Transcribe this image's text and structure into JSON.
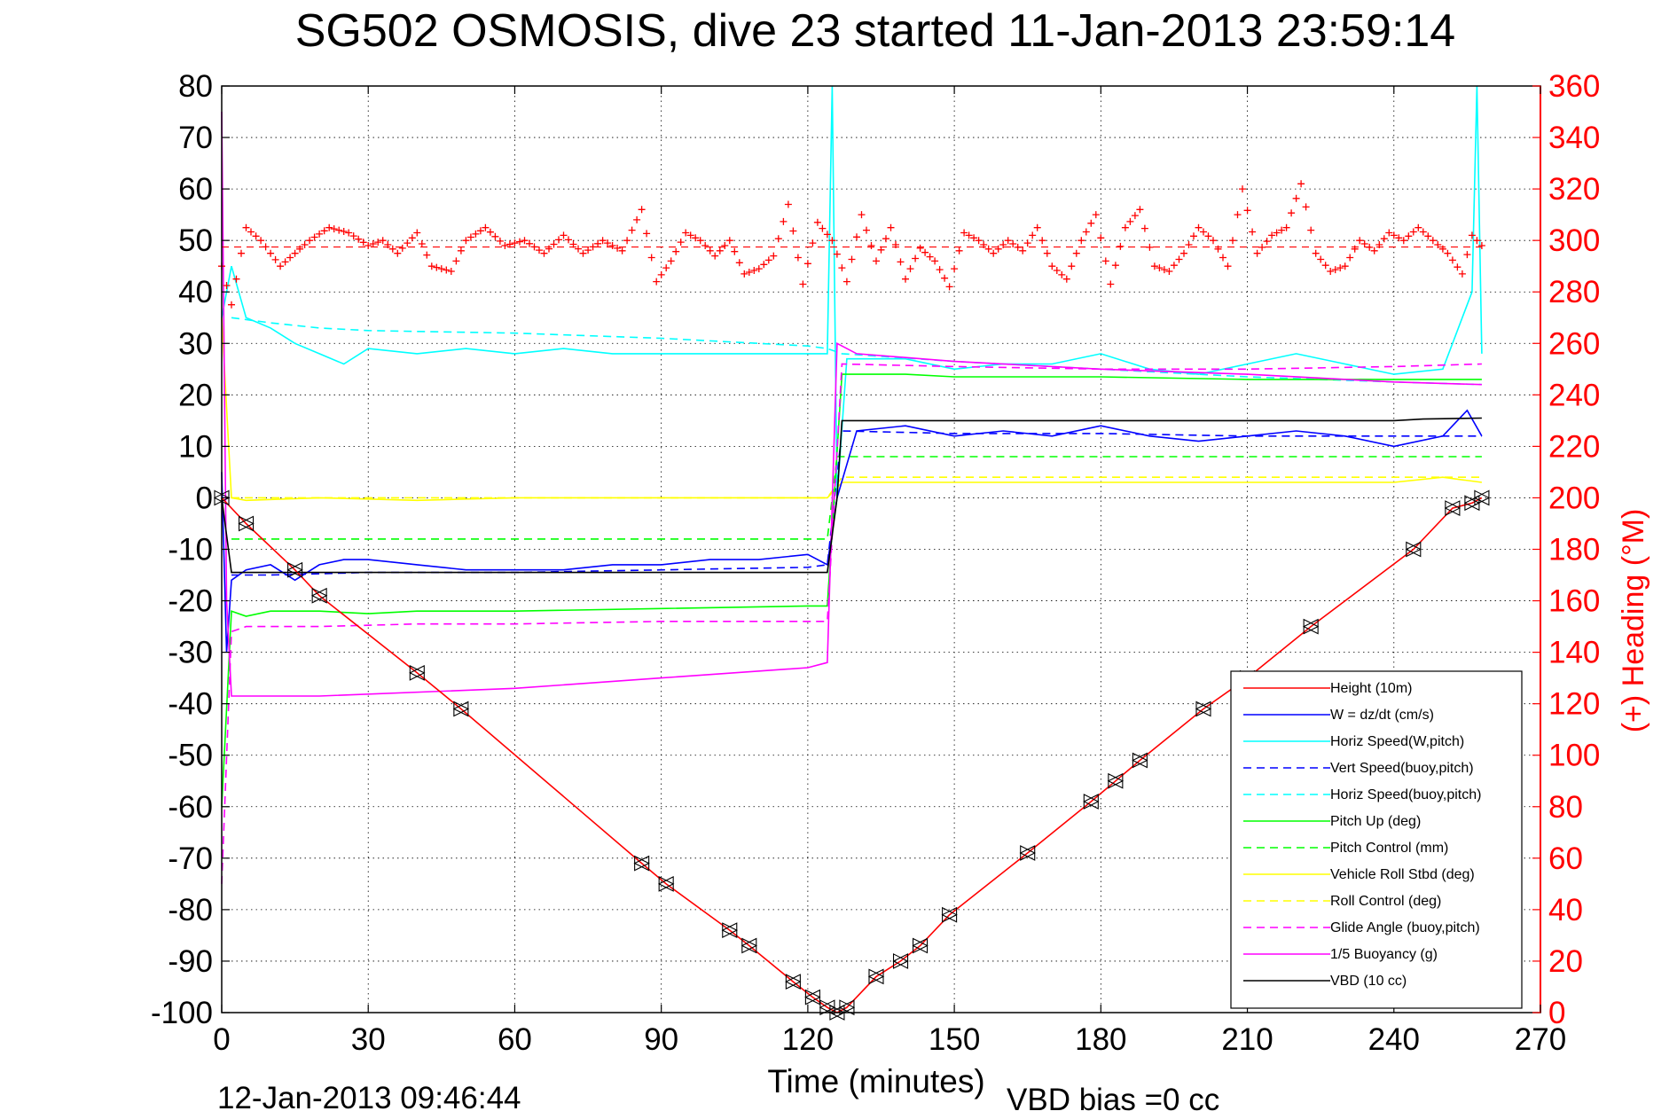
{
  "chart_data": {
    "type": "line",
    "title": "SG502 OSMOSIS, dive 23 started 11-Jan-2013 23:59:14",
    "xlabel": "Time (minutes)",
    "ylabel_right": "(+) Heading (°M)",
    "footer_left": "12-Jan-2013 09:46:44",
    "footer_right": "VBD bias =0 cc",
    "xlim": [
      0,
      270
    ],
    "ylim": [
      -100,
      80
    ],
    "ylim_right": [
      0,
      360
    ],
    "x_ticks": [
      "0",
      "30",
      "60",
      "90",
      "120",
      "150",
      "180",
      "210",
      "240",
      "270"
    ],
    "y_ticks": [
      "80",
      "70",
      "60",
      "50",
      "40",
      "30",
      "20",
      "10",
      "0",
      "-10",
      "-20",
      "-30",
      "-40",
      "-50",
      "-60",
      "-70",
      "-80",
      "-90",
      "-100"
    ],
    "y_ticks_right": [
      "360",
      "340",
      "320",
      "300",
      "280",
      "260",
      "240",
      "220",
      "200",
      "180",
      "160",
      "140",
      "120",
      "100",
      "80",
      "60",
      "40",
      "20",
      "0"
    ],
    "grid": true,
    "legend_position": "bottom-right",
    "heading_color": "#ff0000",
    "series": [
      {
        "name": "Height (10m)",
        "color": "#ff0000",
        "dash": "solid",
        "x": [
          0,
          5,
          15,
          20,
          40,
          49,
          86,
          91,
          104,
          108,
          117,
          121,
          124,
          126,
          128,
          134,
          139,
          143,
          149,
          165,
          178,
          183,
          188,
          201,
          210,
          223,
          244,
          252,
          256,
          258
        ],
        "y": [
          0,
          -5,
          -14,
          -19,
          -34,
          -41,
          -71,
          -75,
          -84,
          -87,
          -94,
          -97,
          -99,
          -100,
          -99,
          -93,
          -90,
          -87,
          -81,
          -69,
          -59,
          -55,
          -51,
          -41,
          -35,
          -25,
          -10,
          -2,
          -1,
          0
        ]
      },
      {
        "name": "W = dz/dt (cm/s)",
        "color": "#0000ff",
        "dash": "solid",
        "x": [
          0,
          1,
          2,
          5,
          10,
          15,
          20,
          25,
          30,
          40,
          50,
          60,
          70,
          80,
          90,
          100,
          110,
          120,
          124,
          126,
          130,
          140,
          150,
          160,
          170,
          180,
          190,
          200,
          210,
          220,
          230,
          240,
          250,
          255,
          258
        ],
        "y": [
          5,
          -30,
          -16,
          -14,
          -13,
          -16,
          -13,
          -12,
          -12,
          -13,
          -14,
          -14,
          -14,
          -13,
          -13,
          -12,
          -12,
          -11,
          -13,
          0,
          13,
          14,
          12,
          13,
          12,
          14,
          12,
          11,
          12,
          13,
          12,
          10,
          12,
          17,
          12
        ]
      },
      {
        "name": "Horiz Speed(W,pitch)",
        "color": "#00ffff",
        "dash": "solid",
        "x": [
          0,
          2,
          5,
          10,
          15,
          20,
          25,
          30,
          40,
          50,
          60,
          70,
          80,
          90,
          100,
          110,
          120,
          124,
          125,
          126,
          128,
          140,
          150,
          160,
          170,
          180,
          190,
          200,
          210,
          220,
          230,
          240,
          250,
          256,
          257,
          258
        ],
        "y": [
          35,
          45,
          35,
          33,
          30,
          28,
          26,
          29,
          28,
          29,
          28,
          29,
          28,
          28,
          28,
          28,
          28,
          28,
          80,
          0,
          27,
          27,
          25,
          26,
          26,
          28,
          25,
          24,
          26,
          28,
          26,
          24,
          25,
          40,
          80,
          28
        ]
      },
      {
        "name": "Vert Speed(buoy,pitch)",
        "color": "#0000ff",
        "dash": "dashed",
        "x": [
          2,
          10,
          30,
          60,
          90,
          120,
          124,
          127,
          150,
          180,
          210,
          240,
          258
        ],
        "y": [
          -15,
          -15,
          -14.5,
          -14.5,
          -14,
          -13.5,
          -13,
          13,
          12.5,
          12.5,
          12,
          12,
          12
        ]
      },
      {
        "name": "Horiz Speed(buoy,pitch)",
        "color": "#00ffff",
        "dash": "dashed",
        "x": [
          2,
          10,
          20,
          30,
          60,
          90,
          120,
          124,
          127,
          150,
          180,
          210,
          240,
          258
        ],
        "y": [
          35,
          34,
          33,
          32.5,
          32,
          31,
          29.5,
          29,
          28,
          26.5,
          25,
          23.5,
          22.5,
          22
        ]
      },
      {
        "name": "Pitch Up (deg)",
        "color": "#00ff00",
        "dash": "solid",
        "x": [
          0,
          2,
          5,
          10,
          20,
          30,
          40,
          60,
          90,
          120,
          124,
          127,
          140,
          150,
          180,
          210,
          240,
          258
        ],
        "y": [
          -60,
          -22,
          -23,
          -22,
          -22,
          -22.5,
          -22,
          -22,
          -21.5,
          -21,
          -21,
          24,
          24,
          23.5,
          23.5,
          23,
          23,
          23
        ]
      },
      {
        "name": "Pitch Control (mm)",
        "color": "#00ff00",
        "dash": "dashed",
        "x": [
          2,
          20,
          124,
          126,
          258
        ],
        "y": [
          -8,
          -8,
          -8,
          8,
          8
        ]
      },
      {
        "name": "Vehicle Roll Stbd (deg)",
        "color": "#ffff00",
        "dash": "solid",
        "x": [
          0,
          2,
          5,
          20,
          40,
          60,
          90,
          120,
          124,
          127,
          150,
          180,
          210,
          240,
          250,
          258
        ],
        "y": [
          35,
          0,
          -0.5,
          0,
          -0.5,
          0,
          0,
          0,
          0,
          3,
          3,
          3,
          3,
          3,
          4,
          3
        ]
      },
      {
        "name": "Roll Control (deg)",
        "color": "#ffff00",
        "dash": "dashed",
        "x": [
          2,
          30,
          60,
          90,
          120,
          124,
          127,
          160,
          200,
          240,
          258
        ],
        "y": [
          0,
          0,
          0,
          0,
          0,
          0,
          4,
          4,
          4,
          4,
          4
        ]
      },
      {
        "name": "Glide Angle (buoy,pitch)",
        "color": "#ff00ff",
        "dash": "dashed",
        "x": [
          0,
          2,
          5,
          10,
          20,
          40,
          60,
          90,
          120,
          124,
          127,
          150,
          180,
          210,
          240,
          258
        ],
        "y": [
          -75,
          -26,
          -25,
          -25,
          -25,
          -24.5,
          -24.5,
          -24,
          -24,
          -24,
          26,
          25.5,
          25,
          25,
          25.5,
          26
        ]
      },
      {
        "name": "1/5 Buoyancy (g)",
        "color": "#ff00ff",
        "dash": "solid",
        "x": [
          0,
          1,
          2,
          20,
          60,
          90,
          120,
          124,
          126,
          130,
          150,
          180,
          210,
          240,
          258
        ],
        "y": [
          75,
          -20,
          -38.5,
          -38.5,
          -37,
          -35,
          -33,
          -32,
          30,
          28,
          26.5,
          25,
          24,
          22.5,
          22
        ]
      },
      {
        "name": "VBD (10 cc)",
        "color": "#000000",
        "dash": "solid",
        "x": [
          0,
          2,
          124,
          126,
          127,
          240,
          246,
          258
        ],
        "y": [
          0,
          -14.5,
          -14.5,
          0,
          15,
          15,
          15.3,
          15.5
        ]
      }
    ],
    "heading": {
      "name": "(+) Heading",
      "color": "#ff0000",
      "marker": "+",
      "x": [
        0,
        2,
        5,
        8,
        12,
        15,
        18,
        22,
        26,
        30,
        33,
        36,
        40,
        43,
        47,
        50,
        54,
        58,
        62,
        66,
        70,
        74,
        78,
        82,
        86,
        89,
        92,
        95,
        98,
        101,
        104,
        107,
        110,
        113,
        116,
        119,
        122,
        125,
        128,
        131,
        134,
        137,
        140,
        143,
        146,
        149,
        152,
        155,
        158,
        161,
        164,
        167,
        170,
        173,
        176,
        179,
        182,
        185,
        188,
        191,
        194,
        197,
        200,
        203,
        206,
        209,
        212,
        215,
        218,
        221,
        224,
        227,
        230,
        233,
        236,
        239,
        242,
        245,
        248,
        251,
        254,
        256,
        258
      ],
      "y": [
        290,
        275,
        305,
        300,
        290,
        295,
        300,
        305,
        303,
        298,
        300,
        295,
        303,
        290,
        288,
        300,
        305,
        298,
        300,
        295,
        302,
        295,
        300,
        296,
        312,
        284,
        292,
        303,
        300,
        294,
        300,
        287,
        289,
        294,
        314,
        283,
        307,
        300,
        284,
        310,
        292,
        305,
        285,
        297,
        292,
        282,
        303,
        300,
        295,
        300,
        296,
        305,
        290,
        285,
        300,
        310,
        283,
        305,
        312,
        290,
        288,
        295,
        305,
        300,
        290,
        320,
        295,
        302,
        305,
        322,
        295,
        288,
        290,
        300,
        296,
        303,
        300,
        305,
        300,
        295,
        287,
        302,
        298
      ]
    }
  }
}
